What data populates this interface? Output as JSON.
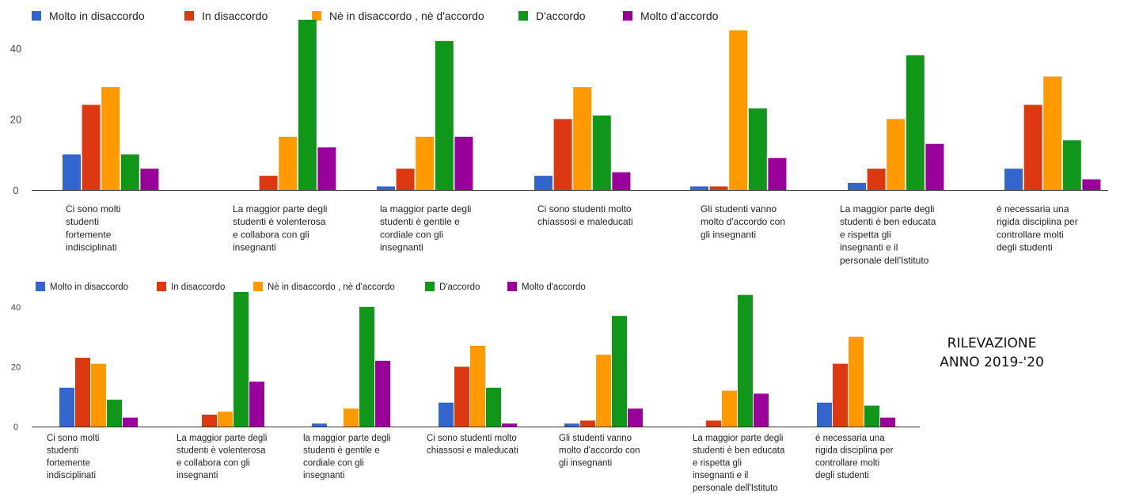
{
  "colors": {
    "molto_in_disaccordo": "#3366cc",
    "in_disaccordo": "#dc3912",
    "ne_ne": "#ff9900",
    "d_accordo": "#109618",
    "molto_d_accordo": "#990099"
  },
  "side_note": {
    "line1": "RILEVAZIONE",
    "line2": "ANNO 2019-'20"
  },
  "chart_data": [
    {
      "type": "bar",
      "categories": [
        [
          "Ci sono molti",
          "studenti",
          "fortemente",
          "indisciplinati"
        ],
        [
          "La maggior parte degli",
          "studenti è volenterosa",
          "e collabora con gli",
          "insegnanti"
        ],
        [
          "la maggior parte degli",
          "studenti è gentile e",
          "cordiale con gli",
          "insegnanti"
        ],
        [
          "Ci sono studenti molto",
          "chiassosi e maleducati"
        ],
        [
          "Gli studenti vanno",
          "molto d'accordo con",
          "gli insegnanti"
        ],
        [
          "La maggior parte degli",
          "studenti è ben educata",
          "e rispetta gli",
          "insegnanti e il",
          "personale dell'Istituto"
        ],
        [
          "é necessaria una",
          "rigida disciplina per",
          "controllare molti",
          "degli studenti"
        ]
      ],
      "series": [
        {
          "name": "Molto in disaccordo",
          "values": [
            10,
            0,
            1,
            4,
            1,
            2,
            6
          ]
        },
        {
          "name": "In disaccordo",
          "values": [
            24,
            4,
            6,
            20,
            1,
            6,
            24
          ]
        },
        {
          "name": "Nè in disaccordo , nè d'accordo",
          "values": [
            29,
            15,
            15,
            29,
            45,
            20,
            32
          ]
        },
        {
          "name": "D'accordo",
          "values": [
            10,
            48,
            42,
            21,
            23,
            38,
            14
          ]
        },
        {
          "name": "Molto d'accordo",
          "values": [
            6,
            12,
            15,
            5,
            9,
            13,
            3
          ]
        }
      ],
      "yticks": [
        "0",
        "20",
        "40"
      ],
      "ylim": [
        0,
        48
      ],
      "legend_position": "top",
      "grid": false
    },
    {
      "type": "bar",
      "categories": [
        [
          "Ci sono molti",
          "studenti",
          "fortemente",
          "indisciplinati"
        ],
        [
          "La maggior parte degli",
          "studenti è volenterosa",
          "e collabora con gli",
          "insegnanti"
        ],
        [
          "la maggior parte degli",
          "studenti è gentile e",
          "cordiale con gli",
          "insegnanti"
        ],
        [
          "Ci sono studenti molto",
          "chiassosi e maleducati"
        ],
        [
          "Gli studenti vanno",
          "molto d'accordo con",
          "gli insegnanti"
        ],
        [
          "La maggior parte degli",
          "studenti è ben educata",
          "e rispetta gli",
          "insegnanti e il",
          "personale dell'Istituto"
        ],
        [
          "é necessaria una",
          "rigida disciplina per",
          "controllare molti",
          "degli studenti"
        ]
      ],
      "series": [
        {
          "name": "Molto in disaccordo",
          "values": [
            13,
            0,
            1,
            8,
            1,
            0,
            8
          ]
        },
        {
          "name": "In disaccordo",
          "values": [
            23,
            4,
            0,
            20,
            2,
            2,
            21
          ]
        },
        {
          "name": "Nè in disaccordo , nè d'accordo",
          "values": [
            21,
            5,
            6,
            27,
            24,
            12,
            30
          ]
        },
        {
          "name": "D'accordo",
          "values": [
            9,
            45,
            40,
            13,
            37,
            44,
            7
          ]
        },
        {
          "name": "Molto d'accordo",
          "values": [
            3,
            15,
            22,
            1,
            6,
            11,
            3
          ]
        }
      ],
      "yticks": [
        "0",
        "20",
        "40"
      ],
      "ylim": [
        0,
        45
      ],
      "legend_position": "top",
      "grid": false
    }
  ]
}
